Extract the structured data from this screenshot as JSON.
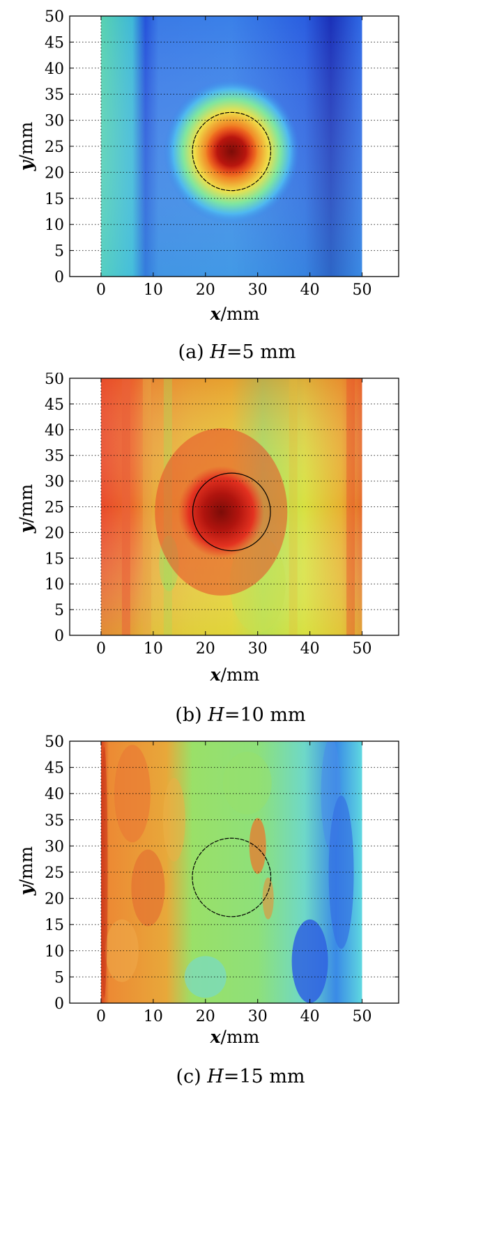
{
  "chart_data": [
    {
      "type": "heatmap",
      "caption": "(a) H=5 mm",
      "caption_prefix": "(a) ",
      "caption_var": "H",
      "caption_value": "=5 mm",
      "x_var": "x",
      "x_unit": "/mm",
      "y_var": "y",
      "y_unit": "/mm",
      "xlim": [
        -6,
        57
      ],
      "ylim": [
        0,
        50
      ],
      "xticks": [
        0,
        10,
        20,
        30,
        40,
        50
      ],
      "yticks": [
        0,
        5,
        10,
        15,
        20,
        25,
        30,
        35,
        40,
        45,
        50
      ],
      "grid": "dotted horizontal",
      "data_extent_x": [
        0,
        50
      ],
      "data_extent_y": [
        0,
        50
      ],
      "hotspot": {
        "x": 25,
        "y": 24,
        "level": 1.0
      },
      "circle": {
        "cx": 25,
        "cy": 24,
        "r": 7.5
      },
      "colors": {
        "background": "#2b5fe6",
        "mid": "#3fa0ee",
        "hot": "#e8301a",
        "core": "#8a0f0a"
      }
    },
    {
      "type": "heatmap",
      "caption": "(b) H=10 mm",
      "caption_prefix": "(b) ",
      "caption_var": "H",
      "caption_value": "=10 mm",
      "x_var": "x",
      "x_unit": "/mm",
      "y_var": "y",
      "y_unit": "/mm",
      "xlim": [
        -6,
        57
      ],
      "ylim": [
        0,
        50
      ],
      "xticks": [
        0,
        10,
        20,
        30,
        40,
        50
      ],
      "yticks": [
        0,
        5,
        10,
        15,
        20,
        25,
        30,
        35,
        40,
        45,
        50
      ],
      "grid": "dotted horizontal",
      "data_extent_x": [
        0,
        50
      ],
      "data_extent_y": [
        0,
        50
      ],
      "hotspot": {
        "x": 23,
        "y": 24,
        "level": 1.0
      },
      "circle": {
        "cx": 25,
        "cy": 24,
        "r": 7.5
      },
      "colors": {
        "background": "#e6d02f",
        "left": "#e8462a",
        "green": "#9fe05a",
        "core": "#8a0f0a"
      }
    },
    {
      "type": "heatmap",
      "caption": "(c) H=15 mm",
      "caption_prefix": "(c) ",
      "caption_var": "H",
      "caption_value": "=15 mm",
      "x_var": "x",
      "x_unit": "/mm",
      "y_var": "y",
      "y_unit": "/mm",
      "xlim": [
        -6,
        57
      ],
      "ylim": [
        0,
        50
      ],
      "xticks": [
        0,
        10,
        20,
        30,
        40,
        50
      ],
      "yticks": [
        0,
        5,
        10,
        15,
        20,
        25,
        30,
        35,
        40,
        45,
        50
      ],
      "grid": "dotted horizontal",
      "data_extent_x": [
        0,
        50
      ],
      "data_extent_y": [
        0,
        50
      ],
      "circle": {
        "cx": 25,
        "cy": 24,
        "r": 7.5
      },
      "colors": {
        "background": "#8fe070",
        "orange": "#ef9a3a",
        "cyan": "#5fd8e8",
        "blue": "#2f62e0"
      }
    }
  ]
}
